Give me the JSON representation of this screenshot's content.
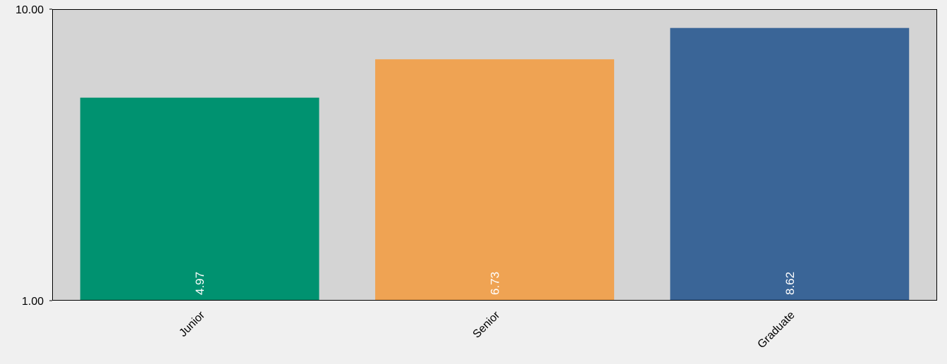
{
  "chart_data": {
    "type": "bar",
    "categories": [
      "Junior",
      "Senior",
      "Graduate"
    ],
    "values": [
      4.97,
      6.73,
      8.62
    ],
    "data_labels": [
      "4.97",
      "6.73",
      "8.62"
    ],
    "title": "",
    "xlabel": "",
    "ylabel": "",
    "yscale": "log",
    "ylim": [
      1.0,
      10.0
    ],
    "yticks": [
      1.0,
      10.0
    ],
    "ytick_labels": [
      "1.00",
      "10.00"
    ],
    "grid": false,
    "legend": "none",
    "colors": [
      "#009270",
      "#efa353",
      "#3a6597"
    ],
    "plot_background": "#d4d4d4",
    "page_background": "#f0f0f0"
  }
}
